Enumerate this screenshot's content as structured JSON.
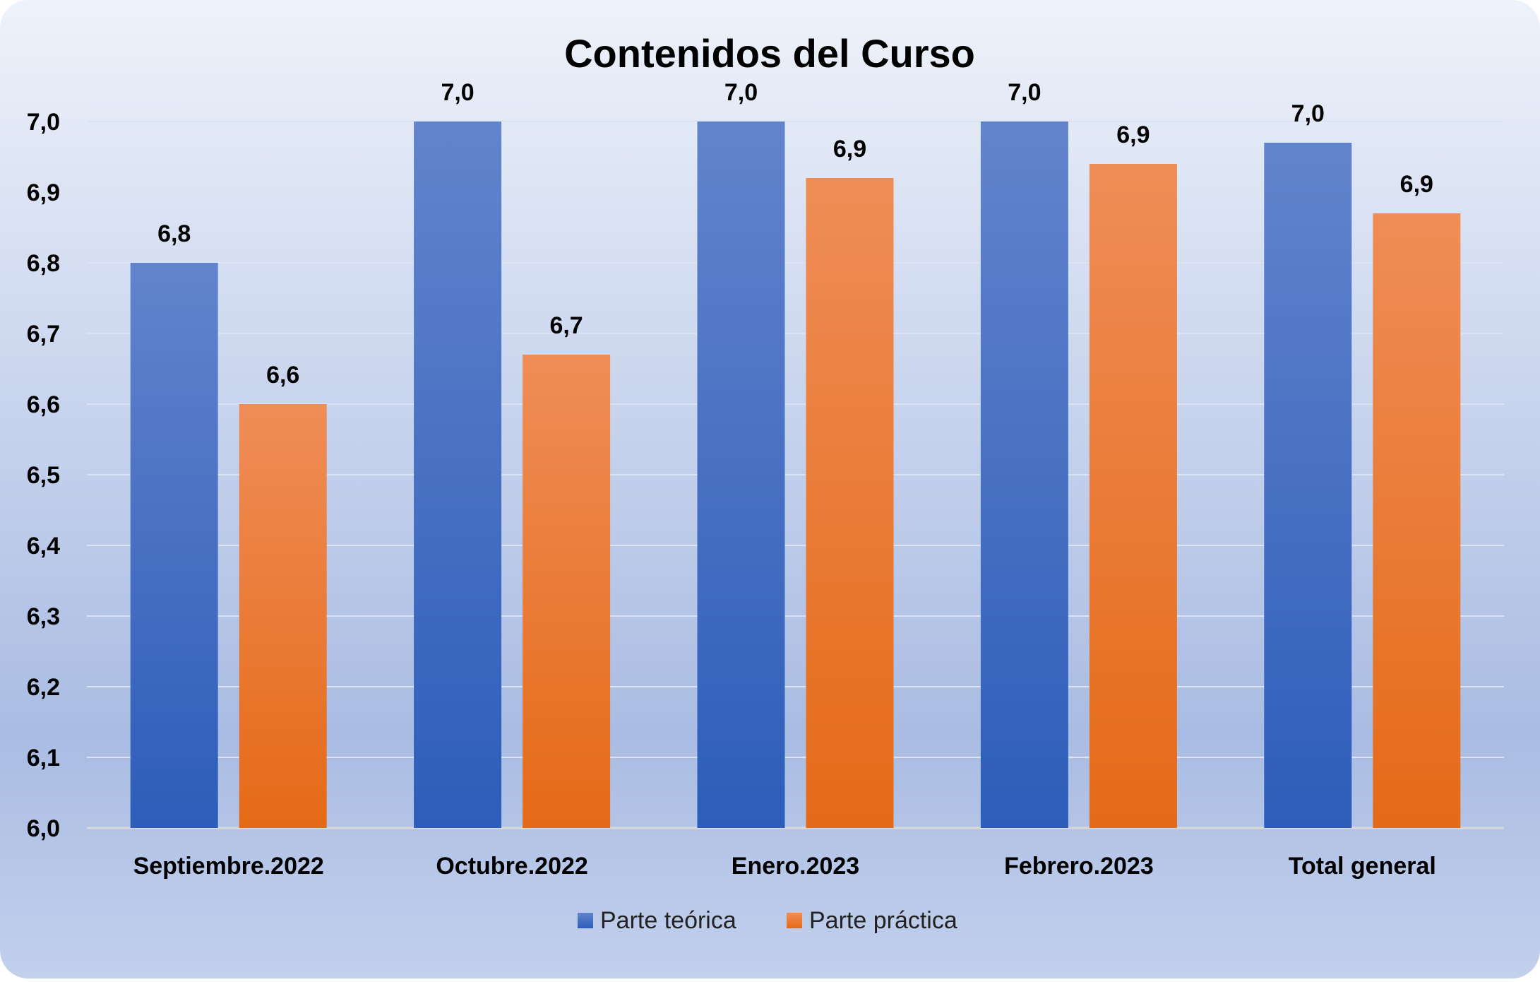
{
  "chart_data": {
    "type": "bar",
    "title": "Contenidos del Curso",
    "xlabel": "",
    "ylabel": "",
    "categories": [
      "Septiembre.2022",
      "Octubre.2022",
      "Enero.2023",
      "Febrero.2023",
      "Total general"
    ],
    "series": [
      {
        "name": "Parte teórica",
        "values": [
          6.8,
          7.0,
          7.0,
          7.0,
          6.97
        ],
        "labels": [
          "6,8",
          "7,0",
          "7,0",
          "7,0",
          "7,0"
        ],
        "color": "#4472C4"
      },
      {
        "name": "Parte práctica",
        "values": [
          6.6,
          6.67,
          6.92,
          6.94,
          6.87
        ],
        "labels": [
          "6,6",
          "6,7",
          "6,9",
          "6,9",
          "6,9"
        ],
        "color": "#ED7D31"
      }
    ],
    "ylim": [
      6.0,
      7.0
    ],
    "yticks": [
      6.0,
      6.1,
      6.2,
      6.3,
      6.4,
      6.5,
      6.6,
      6.7,
      6.8,
      6.9,
      7.0
    ],
    "ytick_labels": [
      "6,0",
      "6,1",
      "6,2",
      "6,3",
      "6,4",
      "6,5",
      "6,6",
      "6,7",
      "6,8",
      "6,9",
      "7,0"
    ],
    "grid": true,
    "legend_position": "bottom"
  }
}
